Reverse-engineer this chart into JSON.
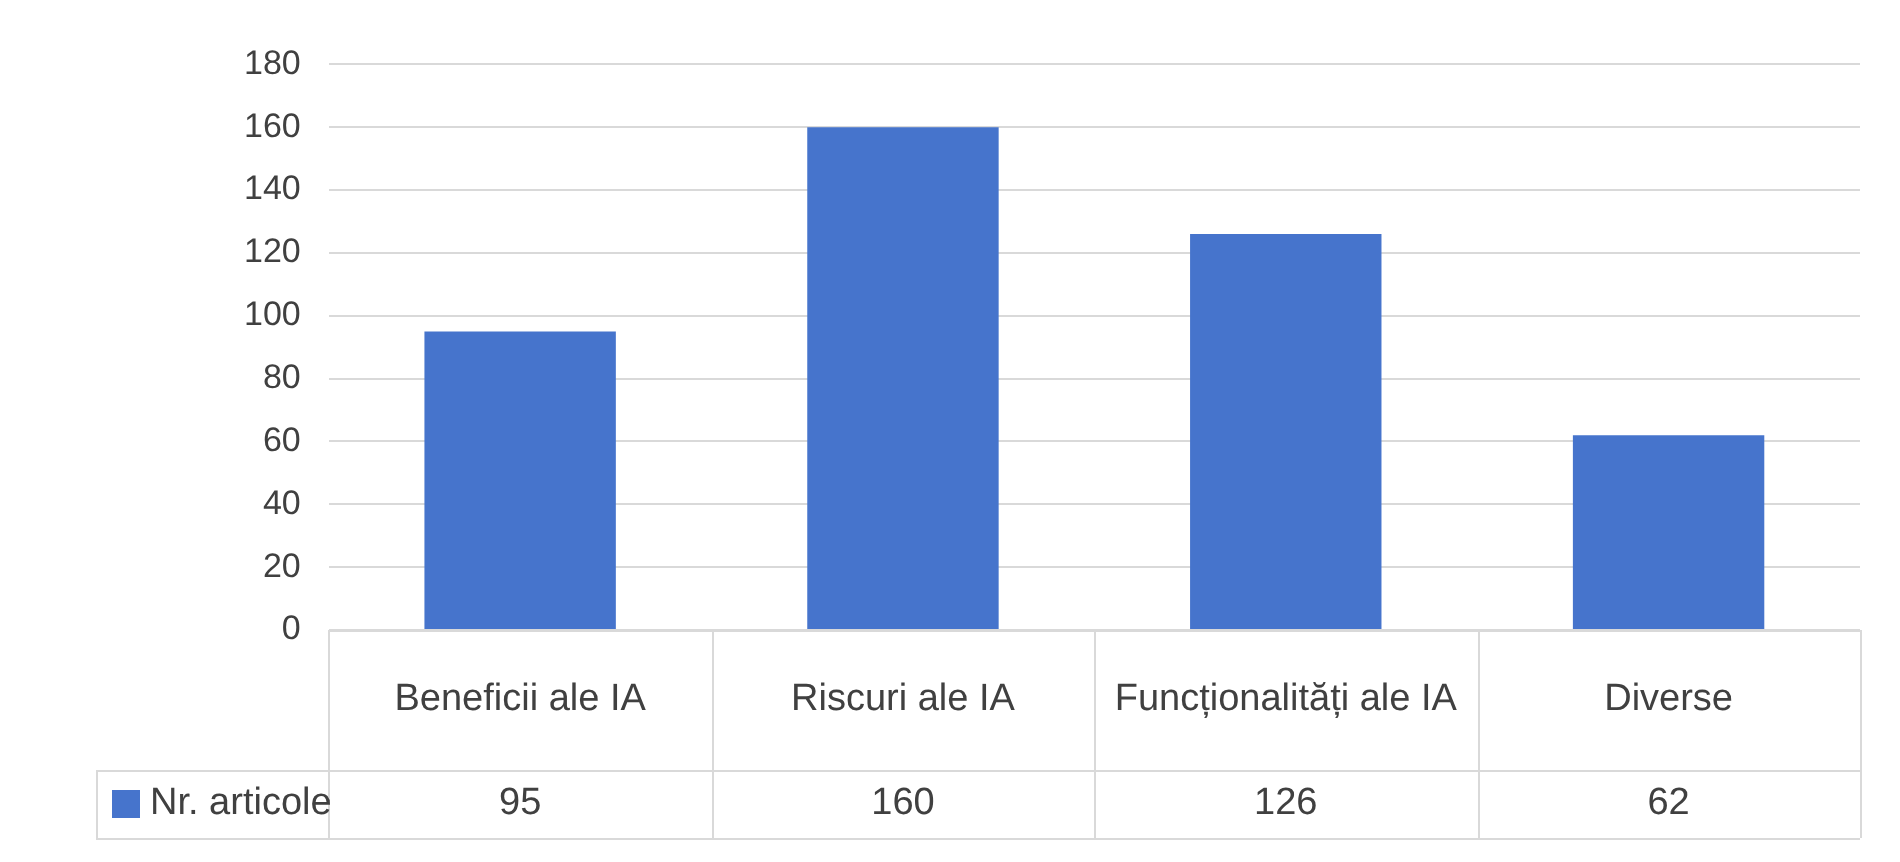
{
  "chart_data": {
    "type": "bar",
    "categories": [
      "Beneficii ale IA",
      "Riscuri ale IA",
      "Funcționalități ale IA",
      "Diverse"
    ],
    "series": [
      {
        "name": "Nr. articole",
        "color": "#4674cc",
        "values": [
          95,
          160,
          126,
          62
        ]
      }
    ],
    "ylim": [
      0,
      180
    ],
    "yticks": [
      0,
      20,
      40,
      60,
      80,
      100,
      120,
      140,
      160,
      180
    ],
    "grid": "y",
    "legend": "bottom",
    "data_labels": true
  }
}
